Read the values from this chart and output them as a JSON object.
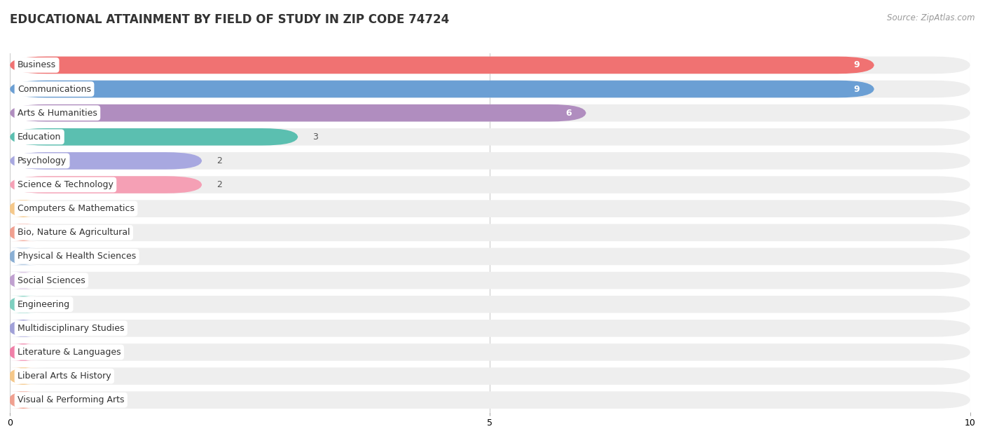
{
  "title": "EDUCATIONAL ATTAINMENT BY FIELD OF STUDY IN ZIP CODE 74724",
  "source": "Source: ZipAtlas.com",
  "categories": [
    "Business",
    "Communications",
    "Arts & Humanities",
    "Education",
    "Psychology",
    "Science & Technology",
    "Computers & Mathematics",
    "Bio, Nature & Agricultural",
    "Physical & Health Sciences",
    "Social Sciences",
    "Engineering",
    "Multidisciplinary Studies",
    "Literature & Languages",
    "Liberal Arts & History",
    "Visual & Performing Arts"
  ],
  "values": [
    9,
    9,
    6,
    3,
    2,
    2,
    0,
    0,
    0,
    0,
    0,
    0,
    0,
    0,
    0
  ],
  "bar_colors": [
    "#f07272",
    "#6b9fd4",
    "#b08dbf",
    "#5bbfb0",
    "#a8a8e0",
    "#f5a0b5",
    "#f5c88a",
    "#f0a090",
    "#8aafd4",
    "#c0a0d0",
    "#7dcfbf",
    "#a0a0d8",
    "#f080a8",
    "#f5c88a",
    "#f0a090"
  ],
  "xlim": [
    0,
    10
  ],
  "xticks": [
    0,
    5,
    10
  ],
  "background_color": "#ffffff",
  "capsule_color": "#eeeeee",
  "title_fontsize": 12,
  "label_fontsize": 9,
  "value_fontsize": 9
}
